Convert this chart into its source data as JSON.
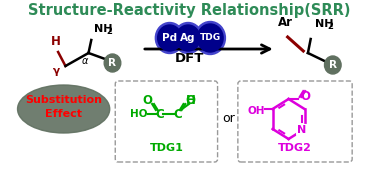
{
  "title": "Structure-Reactivity Relationship(SRR)",
  "title_color": "#2e8b57",
  "title_fontsize": 10.5,
  "bg_color": "#ffffff",
  "subst_ellipse_color": "#607060",
  "subst_text": "Substitution\nEffect",
  "subst_text_color": "#ff0000",
  "dft_text": "DFT",
  "circle_fill": "#00008b",
  "circle_edge": "#4444cc",
  "tdg1_color": "#00aa00",
  "tdg1_label": "TDG1",
  "tdg2_color": "#dd00dd",
  "tdg2_label": "TDG2",
  "or_text": "or",
  "arrow_color": "#000000",
  "bond_color": "#000000",
  "h_color": "#8b0000",
  "gamma_color": "#8b0000",
  "ar_bond_color": "#8b0000",
  "r_circle_color": "#607060",
  "r_text_color": "#ffffff",
  "box_dash_color": "#999999"
}
